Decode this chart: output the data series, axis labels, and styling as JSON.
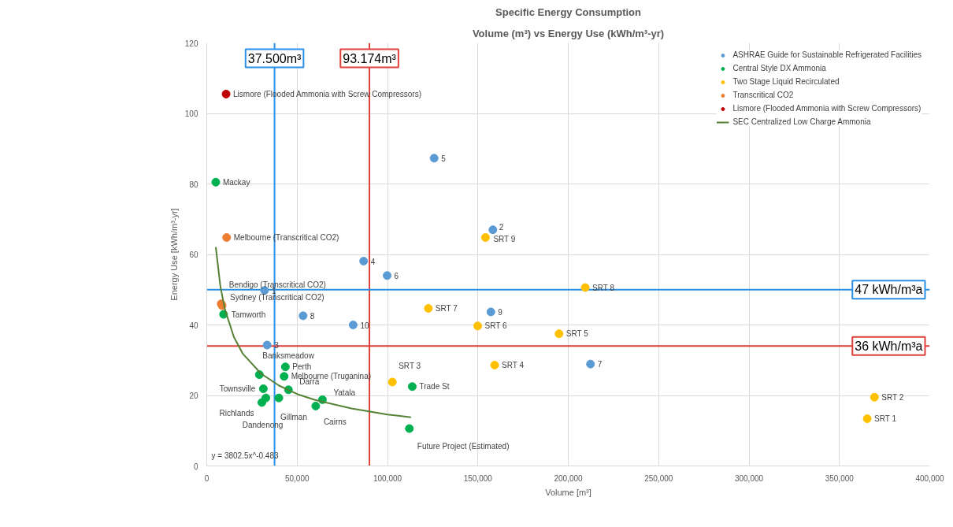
{
  "chart_data": {
    "type": "scatter",
    "title": "Specific Energy Consumption",
    "subtitle": "Volume (m³) vs Energy Use (kWh/m³-yr)",
    "xlabel": "Volume [m³]",
    "ylabel": "Energy Use [kWh/m³-yr]",
    "xlim": [
      0,
      400000
    ],
    "xticks": [
      0,
      {
        "value": 50000,
        "label": "50,000"
      },
      {
        "value": 100000,
        "label": "100,000"
      },
      {
        "value": 150000,
        "label": "150,000"
      },
      {
        "value": 200000,
        "label": "200,000"
      },
      {
        "value": 250000,
        "label": "250,000"
      },
      {
        "value": 300000,
        "label": "300,000"
      },
      {
        "value": 350000,
        "label": "350,000"
      },
      {
        "value": 400000,
        "label": "400,000"
      }
    ],
    "ylim": [
      0,
      120
    ],
    "yticks": [
      0,
      20,
      40,
      60,
      80,
      100,
      120
    ],
    "grid": true,
    "legend": "top right",
    "series": [
      {
        "type": "scatter",
        "name": "ASHRAE Guide for Sustainable Refrigerated Facilities",
        "color": "#5b9bd5",
        "marker": "circle",
        "x": [
          32000,
          158300,
          33400,
          86800,
          125800,
          99800,
          212300,
          53300,
          157200,
          81000
        ],
        "values": [
          49.8,
          67.0,
          34.3,
          58.1,
          87.3,
          54.0,
          28.9,
          42.6,
          43.7,
          40.0
        ]
      },
      {
        "type": "scatter",
        "name": "Central Style DX Ammonia",
        "color": "#00b050",
        "marker": "circle",
        "x": [
          5000,
          9300,
          29100,
          43500,
          42800,
          45200,
          31300,
          30500,
          32700,
          39900,
          64000,
          60300,
          113700,
          112100
        ],
        "values": [
          80.5,
          43.0,
          25.9,
          28.1,
          25.4,
          21.6,
          21.9,
          18.0,
          19.3,
          19.3,
          18.8,
          17.0,
          22.5,
          10.6
        ]
      },
      {
        "type": "scatter",
        "name": "Two Stage Liquid Recirculated",
        "color": "#ffc000",
        "marker": "circle",
        "x": [
          365400,
          369400,
          102700,
          159300,
          194900,
          149900,
          122600,
          209400,
          154200
        ],
        "values": [
          13.4,
          19.5,
          23.8,
          28.6,
          37.5,
          39.7,
          44.7,
          50.6,
          64.8
        ]
      },
      {
        "type": "scatter",
        "name": "Transcritical CO2",
        "color": "#ed7d31",
        "marker": "circle",
        "x": [
          11000,
          8000,
          8500
        ],
        "values": [
          64.8,
          46.0,
          45.5
        ]
      },
      {
        "type": "scatter",
        "name": "Lismore (Flooded Ammonia with Screw Compressors)",
        "color": "#c00000",
        "marker": "circle",
        "x": [
          10700
        ],
        "values": [
          105.5
        ]
      },
      {
        "type": "line",
        "name": "SEC Centralized Low Charge Ammonia",
        "color": "#548235",
        "x": [
          5000,
          7500,
          10000,
          15000,
          20000,
          30000,
          40000,
          50000,
          60000,
          80000,
          100000,
          113000
        ],
        "values": [
          62.1,
          51.1,
          44.5,
          36.6,
          31.8,
          26.2,
          22.8,
          20.4,
          18.7,
          16.3,
          14.6,
          13.8
        ]
      }
    ],
    "ref_lines": [
      {
        "axis": "x",
        "value": 37500,
        "label": "37.500m³",
        "color": "#2b8fe6"
      },
      {
        "axis": "x",
        "value": 90000,
        "label": "93.174m³",
        "color": "#e0403a"
      },
      {
        "axis": "y",
        "value": 50,
        "label": "47 kWh/m³a",
        "color": "#2b8fe6"
      },
      {
        "axis": "y",
        "value": 34,
        "label": "36 kWh/m³a",
        "color": "#e0403a"
      }
    ],
    "annotations": [
      "y = 3802.5x^-0.483",
      {
        "text": "1",
        "x": 32000,
        "y": 49.8
      },
      {
        "text": "2",
        "x": 158300,
        "y": 67.0
      },
      {
        "text": "3",
        "x": 33400,
        "y": 34.3
      },
      {
        "text": "4",
        "x": 86800,
        "y": 58.1
      },
      {
        "text": "5",
        "x": 125800,
        "y": 87.3
      },
      {
        "text": "6",
        "x": 99800,
        "y": 54.0
      },
      {
        "text": "7",
        "x": 212300,
        "y": 28.9
      },
      {
        "text": "8",
        "x": 53300,
        "y": 42.6
      },
      {
        "text": "9",
        "x": 157200,
        "y": 43.7
      },
      {
        "text": "10",
        "x": 81000,
        "y": 40.0
      },
      {
        "text": "Mackay",
        "x": 5000,
        "y": 80.5
      },
      {
        "text": "Tamworth",
        "x": 9300,
        "y": 43.0
      },
      {
        "text": "Banksmeadow",
        "x": 29100,
        "y": 25.9
      },
      {
        "text": "Perth",
        "x": 43500,
        "y": 28.1
      },
      {
        "text": "Melbourne (Truganina)",
        "x": 42800,
        "y": 25.4
      },
      {
        "text": "Darra",
        "x": 45200,
        "y": 21.6
      },
      {
        "text": "Townsville",
        "x": 31300,
        "y": 21.9
      },
      {
        "text": "Richlands",
        "x": 30500,
        "y": 18.0
      },
      {
        "text": "Dandenong",
        "x": 32700,
        "y": 19.3
      },
      {
        "text": "Gillman",
        "x": 39900,
        "y": 19.3
      },
      {
        "text": "Yatala",
        "x": 64000,
        "y": 18.8
      },
      {
        "text": "Cairns",
        "x": 60300,
        "y": 17.0
      },
      {
        "text": "Trade St",
        "x": 113700,
        "y": 22.5
      },
      {
        "text": "Future Project (Estimated)",
        "x": 112100,
        "y": 10.6
      },
      {
        "text": "SRT 1",
        "x": 365400,
        "y": 13.4
      },
      {
        "text": "SRT 2",
        "x": 369400,
        "y": 19.5
      },
      {
        "text": "SRT 3",
        "x": 102700,
        "y": 23.8
      },
      {
        "text": "SRT 4",
        "x": 159300,
        "y": 28.6
      },
      {
        "text": "SRT 5",
        "x": 194900,
        "y": 37.5
      },
      {
        "text": "SRT 6",
        "x": 149900,
        "y": 39.7
      },
      {
        "text": "SRT 7",
        "x": 122600,
        "y": 44.7
      },
      {
        "text": "SRT 8",
        "x": 209400,
        "y": 50.6
      },
      {
        "text": "SRT 9",
        "x": 154200,
        "y": 64.8
      },
      {
        "text": "Melbourne (Transcritical CO2)",
        "x": 11000,
        "y": 64.8
      },
      {
        "text": "Bendigo (Transcritical CO2)",
        "x": 8000,
        "y": 46.0
      },
      {
        "text": "Sydney (Transcritical CO2)",
        "x": 8500,
        "y": 45.5
      },
      {
        "text": "Lismore (Flooded Ammonia with Screw Compressors)",
        "x": 10700,
        "y": 105.5
      }
    ]
  }
}
